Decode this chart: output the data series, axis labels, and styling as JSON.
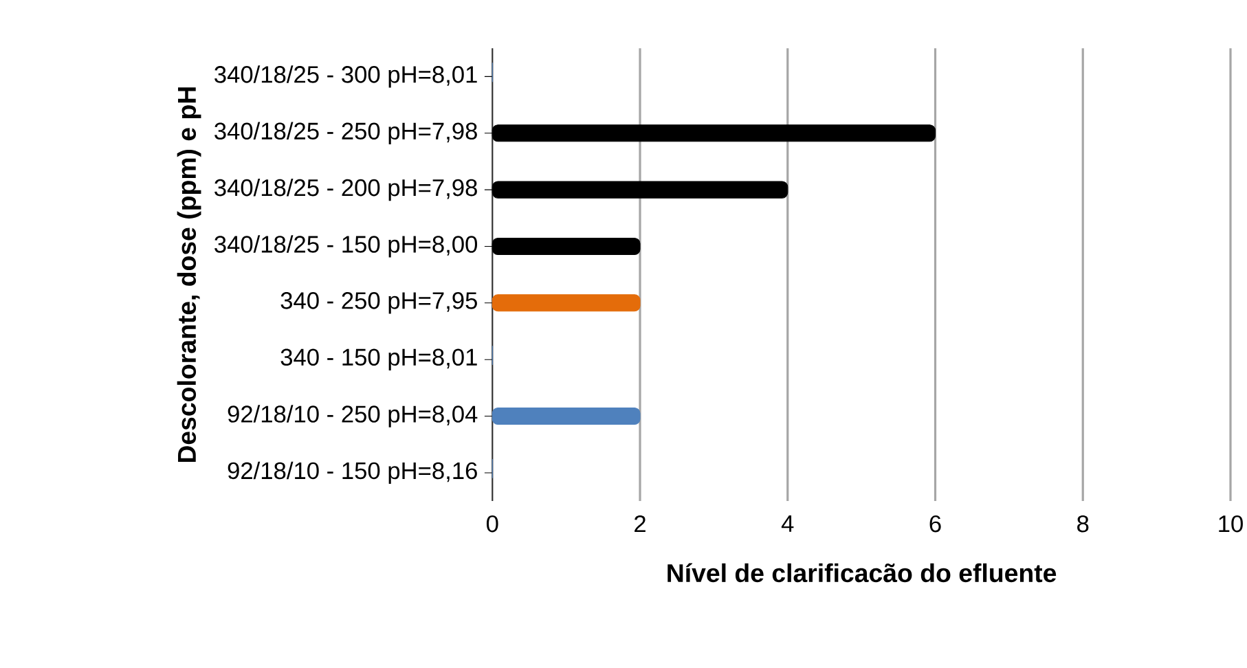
{
  "chart_data": {
    "type": "bar",
    "orientation": "horizontal",
    "xlabel": "Nível de clarificacão do efluente",
    "ylabel": "Descolorante, dose (ppm) e pH",
    "categories": [
      "340/18/25 - 300 pH=8,01",
      "340/18/25 - 250 pH=7,98",
      "340/18/25 - 200 pH=7,98",
      "340/18/25 - 150 pH=8,00",
      "340 - 250 pH=7,95",
      "340 - 150 pH=8,01",
      "92/18/10 - 250 pH=8,04",
      "92/18/10 - 150 pH=8,16"
    ],
    "values": [
      0,
      6,
      4,
      2,
      2,
      0,
      2,
      0
    ],
    "colors": [
      "#4f81bd",
      "#000000",
      "#000000",
      "#000000",
      "#e46c0a",
      "#4f81bd",
      "#4f81bd",
      "#4f81bd"
    ],
    "xlim": [
      0,
      10
    ],
    "xticks": [
      0,
      2,
      4,
      6,
      8,
      10
    ],
    "grid": "x"
  }
}
